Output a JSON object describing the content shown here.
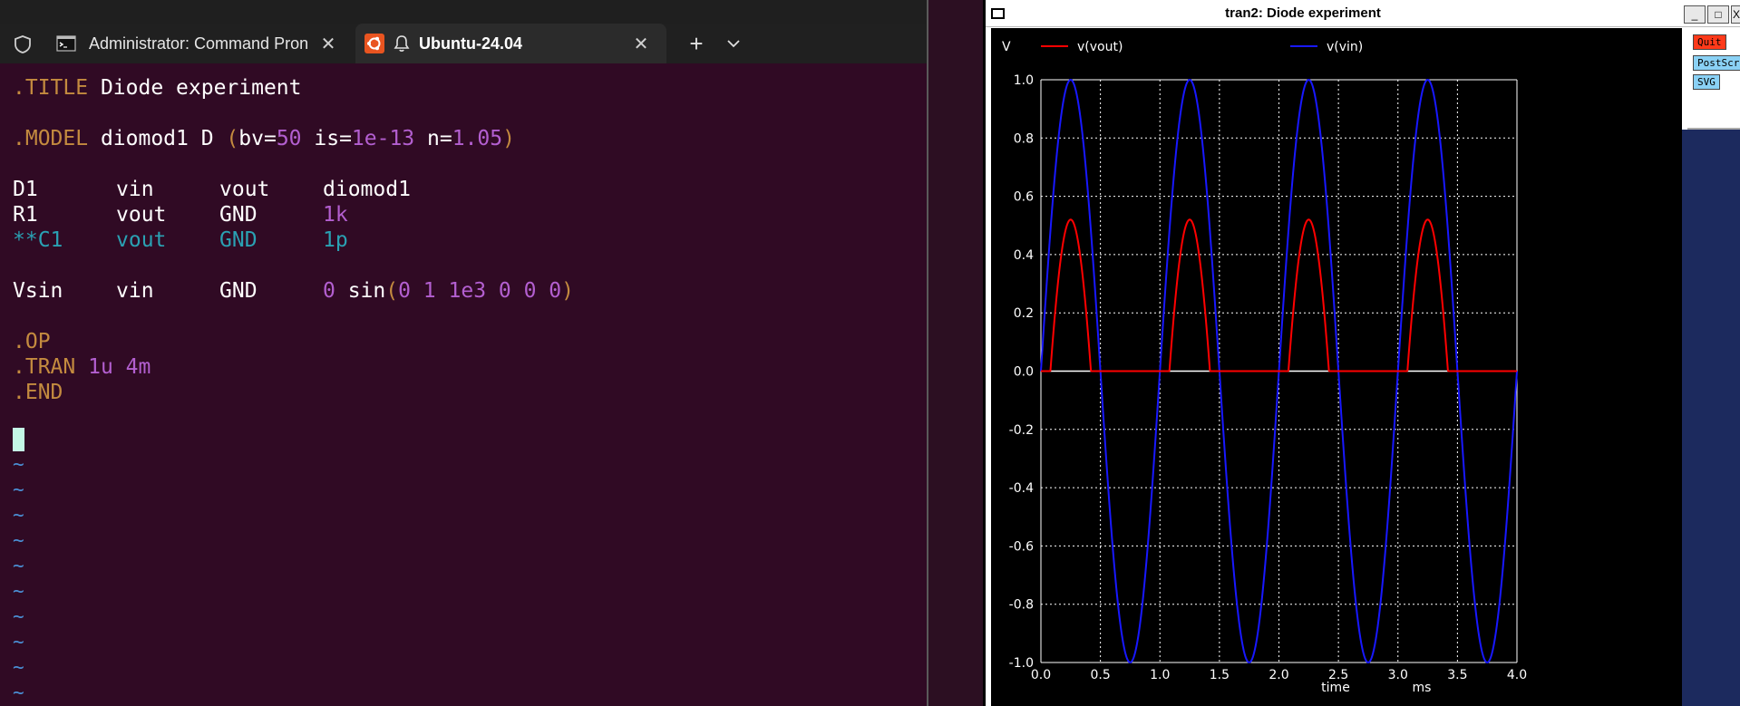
{
  "terminal": {
    "tabs": [
      {
        "label": "Administrator: Command Pron",
        "icon": "cmd-icon"
      },
      {
        "label": "Ubuntu-24.04",
        "icon": "ubuntu-icon"
      }
    ],
    "close_glyph": "✕",
    "new_tab_glyph": "+",
    "lines": {
      "title_kw": ".TITLE",
      "title_text": " Diode experiment",
      "model_kw": ".MODEL",
      "model_a": " diomod1 D ",
      "model_paren_open": "(",
      "model_bv": "bv=",
      "model_bv_val": "50",
      "model_is": " is=",
      "model_is_val": "1e-13",
      "model_n": " n=",
      "model_n_val": "1.05",
      "model_paren_close": ")",
      "d1": {
        "c1": "D1",
        "c2": "vin",
        "c3": "vout",
        "c4": "diomod1"
      },
      "r1": {
        "c1": "R1",
        "c2": "vout",
        "c3": "GND",
        "c4": "1k"
      },
      "c1": {
        "c1": "**C1",
        "c2": "vout",
        "c3": "GND",
        "c4": "1p"
      },
      "vsin": {
        "c1": "Vsin",
        "c2": "vin",
        "c3": "GND",
        "c4a": "0",
        "c4b": " sin",
        "c4c": "(",
        "c4d": "0 1 1e3 0 0 0",
        "c4e": ")"
      },
      "op": ".OP",
      "tran_kw": ".TRAN",
      "tran_val": " 1u 4m",
      "end": ".END"
    },
    "tilde": "~"
  },
  "plot": {
    "window_title": "tran2: Diode experiment",
    "buttons": {
      "quit": "Quit",
      "postscript": "PostScript",
      "svg": "SVG"
    },
    "window_buttons": {
      "minimize": "_",
      "maximize": "□",
      "close": "X"
    },
    "colors": {
      "vout": "#ff0000",
      "vin": "#1818ff",
      "grid": "#ffffff",
      "text": "#ffffff",
      "background": "#000000"
    },
    "chart_data": {
      "type": "line",
      "ylabel": "V",
      "xlabel": "time",
      "xunit": "ms",
      "xlim": [
        0.0,
        4.0
      ],
      "ylim": [
        -1.0,
        1.0
      ],
      "grid": true,
      "legend_placement": "top",
      "x_ticks": [
        "0.0",
        "0.5",
        "1.0",
        "1.5",
        "2.0",
        "2.5",
        "3.0",
        "3.5",
        "4.0"
      ],
      "y_ticks": [
        "1.0",
        "0.8",
        "0.6",
        "0.4",
        "0.2",
        "0.0",
        "-0.2",
        "-0.4",
        "-0.6",
        "-0.8",
        "-1.0"
      ],
      "series": [
        {
          "name": "v(vout)",
          "color": "#ff0000",
          "peak": 0.52,
          "diode_drop": 0.48
        },
        {
          "name": "v(vin)",
          "color": "#1818ff",
          "amplitude": 1.0,
          "frequency_khz": 1.0
        }
      ]
    }
  }
}
